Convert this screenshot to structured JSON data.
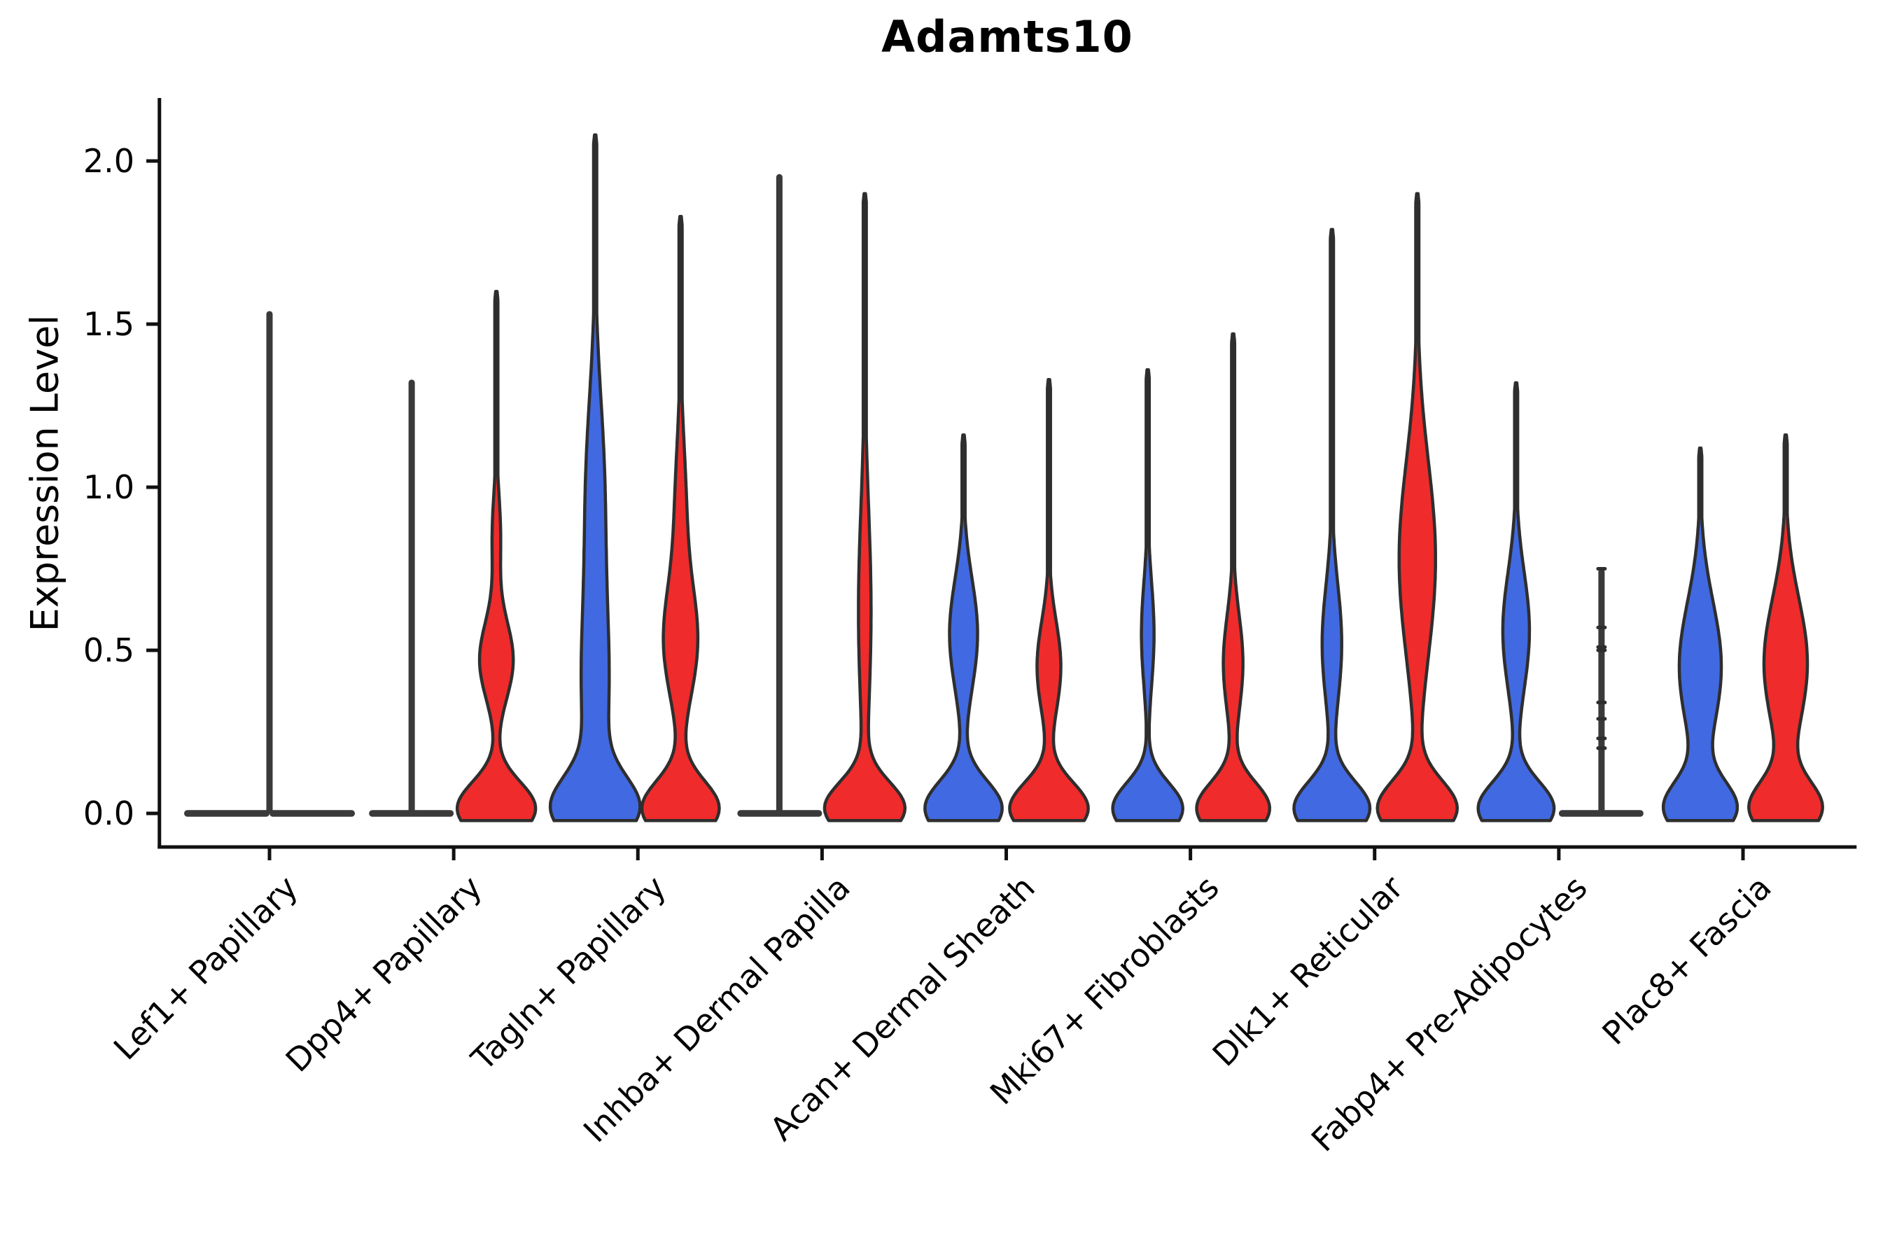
{
  "title": "Adamts10",
  "axes": {
    "y": {
      "label": "Expression Level",
      "ticks": [
        "0.0",
        "0.5",
        "1.0",
        "1.5",
        "2.0"
      ],
      "tick_values": [
        0.0,
        0.5,
        1.0,
        1.5,
        2.0
      ]
    },
    "x": {
      "categories": [
        "Lef1+ Papillary",
        "Dpp4+ Papillary",
        "Tagln+ Papillary",
        "Inhba+ Dermal Papilla",
        "Acan+ Dermal Sheath",
        "Mki67+ Fibroblasts",
        "Dlk1+ Reticular",
        "Fabp4+ Pre-Adipocytes",
        "Plac8+ Fascia"
      ]
    }
  },
  "colors": {
    "blue_fill": "#4169E1",
    "red_fill": "#F02B2B",
    "edge": "#2E2E2E",
    "collapsed_line": "#3A3A3A",
    "axis": "#111111"
  },
  "chart_data": {
    "type": "violin",
    "title": "Adamts10",
    "xlabel": "",
    "ylabel": "Expression Level",
    "ylim": [
      -0.1,
      2.19
    ],
    "grid": false,
    "legend": "none",
    "categories": [
      "Lef1+ Papillary",
      "Dpp4+ Papillary",
      "Tagln+ Papillary",
      "Inhba+ Dermal Papilla",
      "Acan+ Dermal Sheath",
      "Mki67+ Fibroblasts",
      "Dlk1+ Reticular",
      "Fabp4+ Pre-Adipocytes",
      "Plac8+ Fascia"
    ],
    "series": [
      {
        "name": "blue",
        "color": "#4169E1",
        "max_expression": [
          1.54,
          1.33,
          2.08,
          1.96,
          1.16,
          1.36,
          1.79,
          1.32,
          1.12
        ],
        "violins": [
          {
            "kind": "flat",
            "span": [
              -122,
              0
            ],
            "spike": {
              "offset": 0,
              "max": 1.54
            }
          },
          {
            "kind": "flat",
            "span": [
              -121,
              0
            ],
            "spike": {
              "offset": -60,
              "max": 1.33
            }
          },
          {
            "kind": "violin",
            "max": 2.08,
            "bumps": [
              {
                "c": 0.015,
                "s": 0.095,
                "w": 55
              },
              {
                "c": 0.38,
                "s": 0.3,
                "w": 19
              },
              {
                "c": 1.02,
                "s": 0.28,
                "w": 12
              }
            ]
          },
          {
            "kind": "flat",
            "span": [
              -121,
              0
            ],
            "spike": {
              "offset": -61,
              "max": 1.96
            }
          },
          {
            "kind": "violin",
            "max": 1.16,
            "bumps": [
              {
                "c": 0.015,
                "s": 0.085,
                "w": 55
              },
              {
                "c": 0.55,
                "s": 0.17,
                "w": 20
              }
            ]
          },
          {
            "kind": "violin",
            "max": 1.36,
            "bumps": [
              {
                "c": 0.015,
                "s": 0.078,
                "w": 50
              },
              {
                "c": 0.55,
                "s": 0.16,
                "w": 9
              }
            ]
          },
          {
            "kind": "violin",
            "max": 1.79,
            "bumps": [
              {
                "c": 0.015,
                "s": 0.082,
                "w": 54
              },
              {
                "c": 0.52,
                "s": 0.18,
                "w": 14
              }
            ]
          },
          {
            "kind": "violin",
            "max": 1.32,
            "bumps": [
              {
                "c": 0.015,
                "s": 0.082,
                "w": 54
              },
              {
                "c": 0.56,
                "s": 0.18,
                "w": 19
              }
            ]
          },
          {
            "kind": "violin",
            "max": 1.12,
            "bumps": [
              {
                "c": 0.015,
                "s": 0.082,
                "w": 50
              },
              {
                "c": 0.45,
                "s": 0.2,
                "w": 30
              }
            ]
          }
        ]
      },
      {
        "name": "red",
        "color": "#F02B2B",
        "max_expression": [
          1.54,
          1.6,
          1.83,
          1.9,
          1.33,
          1.47,
          1.9,
          0.75,
          1.16
        ],
        "violins": [
          {
            "kind": "flat",
            "span": [
              0,
              122
            ],
            "spike": null
          },
          {
            "kind": "violin",
            "max": 1.6,
            "bumps": [
              {
                "c": 0.015,
                "s": 0.082,
                "w": 56
              },
              {
                "c": 0.47,
                "s": 0.12,
                "w": 24
              },
              {
                "c": 0.85,
                "s": 0.13,
                "w": 6
              }
            ]
          },
          {
            "kind": "violin",
            "max": 1.83,
            "bumps": [
              {
                "c": 0.015,
                "s": 0.085,
                "w": 55
              },
              {
                "c": 0.52,
                "s": 0.17,
                "w": 23
              },
              {
                "c": 0.92,
                "s": 0.22,
                "w": 8
              }
            ]
          },
          {
            "kind": "violin",
            "max": 1.9,
            "bumps": [
              {
                "c": 0.015,
                "s": 0.08,
                "w": 56
              },
              {
                "c": 0.62,
                "s": 0.32,
                "w": 9
              }
            ]
          },
          {
            "kind": "violin",
            "max": 1.33,
            "bumps": [
              {
                "c": 0.015,
                "s": 0.08,
                "w": 56
              },
              {
                "c": 0.45,
                "s": 0.14,
                "w": 17
              }
            ]
          },
          {
            "kind": "violin",
            "max": 1.47,
            "bumps": [
              {
                "c": 0.015,
                "s": 0.08,
                "w": 52
              },
              {
                "c": 0.46,
                "s": 0.15,
                "w": 14
              }
            ]
          },
          {
            "kind": "violin",
            "max": 1.9,
            "bumps": [
              {
                "c": 0.015,
                "s": 0.085,
                "w": 56
              },
              {
                "c": 0.78,
                "s": 0.3,
                "w": 26
              }
            ]
          },
          {
            "kind": "flat",
            "span": [
              0,
              121
            ],
            "spike": {
              "offset": 61,
              "max": 0.75
            },
            "points": [
              0.75,
              0.57,
              0.51,
              0.5,
              0.34,
              0.29,
              0.23,
              0.2
            ]
          },
          {
            "kind": "violin",
            "max": 1.16,
            "bumps": [
              {
                "c": 0.015,
                "s": 0.082,
                "w": 50
              },
              {
                "c": 0.46,
                "s": 0.2,
                "w": 31
              }
            ]
          }
        ]
      }
    ],
    "overlay_points": {
      "category": "Fabp4+ Pre-Adipocytes",
      "series": "red",
      "values": [
        0.75,
        0.57,
        0.51,
        0.5,
        0.34,
        0.29,
        0.23,
        0.2
      ]
    }
  }
}
